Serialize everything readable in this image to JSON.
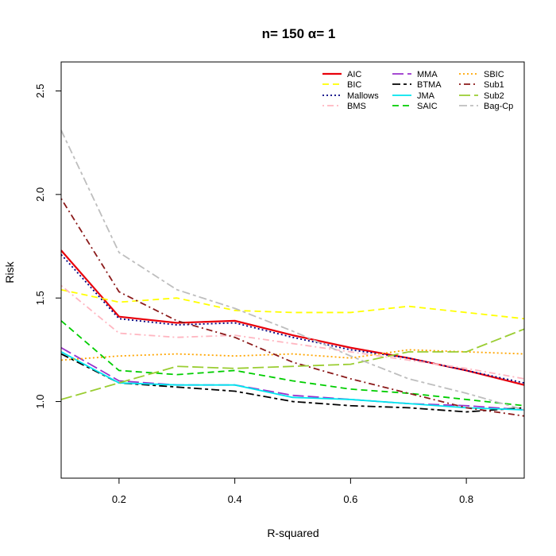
{
  "chart_data": {
    "type": "line",
    "title": "n= 150 α= 1",
    "xlabel": "R-squared",
    "ylabel": "Risk",
    "xlim": [
      0.1,
      0.9
    ],
    "ylim": [
      0.63,
      2.64
    ],
    "x": [
      0.1,
      0.2,
      0.3,
      0.4,
      0.5,
      0.6,
      0.7,
      0.8,
      0.9
    ],
    "xticks": [
      "0.2",
      "0.4",
      "0.6",
      "0.8"
    ],
    "xtick_values": [
      0.2,
      0.4,
      0.6,
      0.8
    ],
    "yticks": [
      "1.0",
      "1.5",
      "2.0",
      "2.5"
    ],
    "ytick_values": [
      1.0,
      1.5,
      2.0,
      2.5
    ],
    "legend_position": "top-right",
    "series": [
      {
        "name": "AIC",
        "color": "#e8000b",
        "dash": "solid",
        "width": 2.2,
        "values": [
          1.73,
          1.41,
          1.38,
          1.39,
          1.32,
          1.26,
          1.21,
          1.15,
          1.08
        ]
      },
      {
        "name": "BIC",
        "color": "#ffff00",
        "dash": "dashed",
        "width": 1.8,
        "values": [
          1.54,
          1.48,
          1.5,
          1.44,
          1.43,
          1.43,
          1.46,
          1.43,
          1.4
        ]
      },
      {
        "name": "Mallows",
        "color": "#000080",
        "dash": "dotted",
        "width": 1.8,
        "values": [
          1.71,
          1.4,
          1.37,
          1.38,
          1.31,
          1.25,
          1.21,
          1.15,
          1.09
        ]
      },
      {
        "name": "BMS",
        "color": "#ffb6c1",
        "dash": "dotdash",
        "width": 1.8,
        "values": [
          1.56,
          1.33,
          1.31,
          1.32,
          1.28,
          1.24,
          1.2,
          1.16,
          1.11
        ]
      },
      {
        "name": "MMA",
        "color": "#9932cc",
        "dash": "longdash",
        "width": 1.8,
        "values": [
          1.26,
          1.1,
          1.08,
          1.08,
          1.03,
          1.01,
          0.99,
          0.98,
          0.96
        ]
      },
      {
        "name": "BTMA",
        "color": "#000000",
        "dash": "twodash",
        "width": 1.8,
        "values": [
          1.23,
          1.09,
          1.07,
          1.05,
          1.0,
          0.98,
          0.97,
          0.95,
          0.97
        ]
      },
      {
        "name": "JMA",
        "color": "#00e5ee",
        "dash": "solid",
        "width": 1.8,
        "values": [
          1.24,
          1.09,
          1.08,
          1.08,
          1.02,
          1.01,
          0.99,
          0.97,
          0.96
        ]
      },
      {
        "name": "SAIC",
        "color": "#00cd00",
        "dash": "dashed",
        "width": 1.8,
        "values": [
          1.39,
          1.15,
          1.13,
          1.15,
          1.1,
          1.06,
          1.04,
          1.01,
          0.98
        ]
      },
      {
        "name": "SBIC",
        "color": "#ffa500",
        "dash": "dotted",
        "width": 1.8,
        "values": [
          1.2,
          1.22,
          1.23,
          1.22,
          1.23,
          1.21,
          1.25,
          1.24,
          1.23
        ]
      },
      {
        "name": "Sub1",
        "color": "#8b1a1a",
        "dash": "dotdash",
        "width": 1.8,
        "values": [
          1.98,
          1.53,
          1.39,
          1.31,
          1.19,
          1.11,
          1.04,
          0.97,
          0.93
        ]
      },
      {
        "name": "Sub2",
        "color": "#9acd32",
        "dash": "longdash",
        "width": 1.8,
        "values": [
          1.01,
          1.09,
          1.17,
          1.16,
          1.17,
          1.18,
          1.24,
          1.24,
          1.35
        ]
      },
      {
        "name": "Bag-Cp",
        "color": "#bebebe",
        "dash": "twodash",
        "width": 1.8,
        "values": [
          2.31,
          1.72,
          1.54,
          1.45,
          1.34,
          1.22,
          1.11,
          1.04,
          0.96
        ]
      }
    ]
  }
}
